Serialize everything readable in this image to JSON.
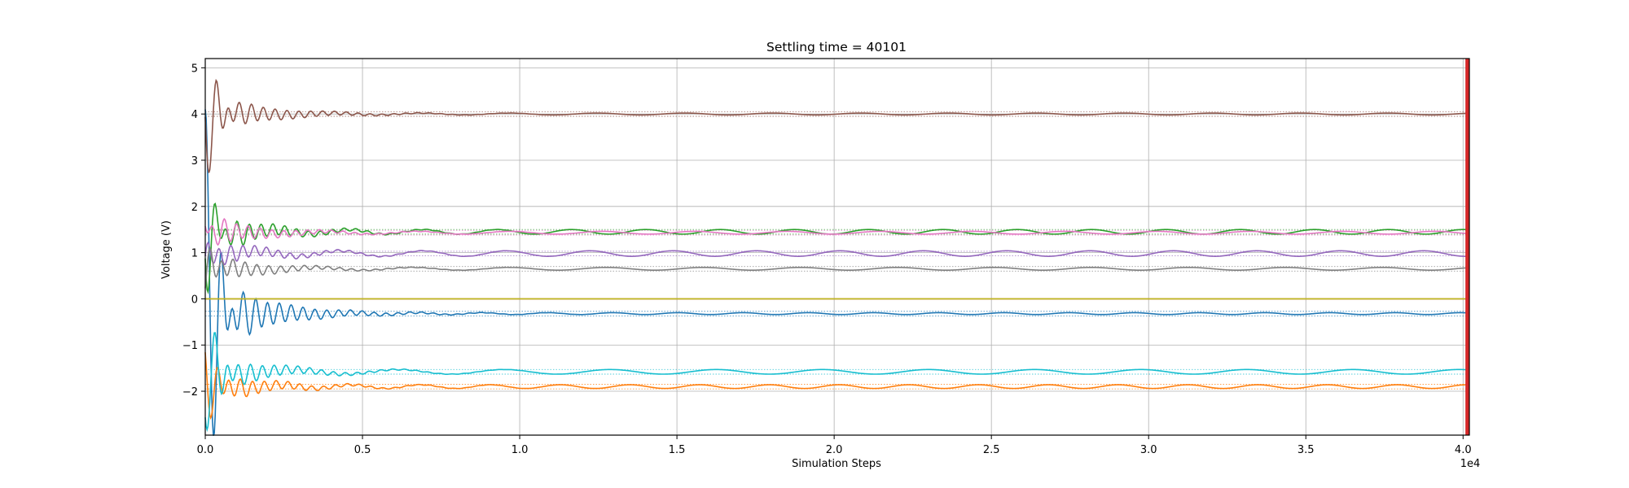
{
  "chart_data": {
    "type": "line",
    "title": "Settling time = 40101",
    "xlabel": "Simulation Steps",
    "ylabel": "Voltage (V)",
    "x_offset_label": "1e4",
    "xlim": [
      0,
      40200
    ],
    "ylim": [
      -2.95,
      5.2
    ],
    "x_ticks": [
      0,
      5000,
      10000,
      15000,
      20000,
      25000,
      30000,
      35000,
      40000
    ],
    "x_tick_labels": [
      "0.0",
      "0.5",
      "1.0",
      "1.5",
      "2.0",
      "2.5",
      "3.0",
      "3.5",
      "4.0"
    ],
    "y_ticks": [
      -2,
      -1,
      0,
      1,
      2,
      3,
      4,
      5
    ],
    "y_tick_labels": [
      "−2",
      "−1",
      "0",
      "1",
      "2",
      "3",
      "4",
      "5"
    ],
    "grid": true,
    "settling_marker_x": 40101,
    "settling_marker_color": "#d62728",
    "series": [
      {
        "color": "#1f77b4",
        "start": 4.1,
        "final": -0.32,
        "osc": 0.02,
        "tol": 0.05
      },
      {
        "color": "#ff7f0e",
        "start": -1.2,
        "final": -1.9,
        "osc": 0.04,
        "tol": 0.05
      },
      {
        "color": "#2ca02c",
        "start": 2.7,
        "final": 1.45,
        "osc": 0.05,
        "tol": 0.05
      },
      {
        "color": "#d62728",
        "start": 0.0,
        "final": 0.0,
        "osc": 0.0,
        "tol": 0.0
      },
      {
        "color": "#9467bd",
        "start": 1.2,
        "final": 0.98,
        "osc": 0.06,
        "tol": 0.05
      },
      {
        "color": "#8c564b",
        "start": 2.7,
        "final": 4.0,
        "osc": 0.02,
        "tol": 0.05
      },
      {
        "color": "#e377c2",
        "start": 1.8,
        "final": 1.43,
        "osc": 0.03,
        "tol": 0.05
      },
      {
        "color": "#7f7f7f",
        "start": 0.3,
        "final": 0.65,
        "osc": 0.03,
        "tol": 0.05
      },
      {
        "color": "#bcbd22",
        "start": 0.0,
        "final": 0.0,
        "osc": 0.0,
        "tol": 0.0
      },
      {
        "color": "#17becf",
        "start": -0.3,
        "final": -1.58,
        "osc": 0.05,
        "tol": 0.05
      }
    ]
  }
}
